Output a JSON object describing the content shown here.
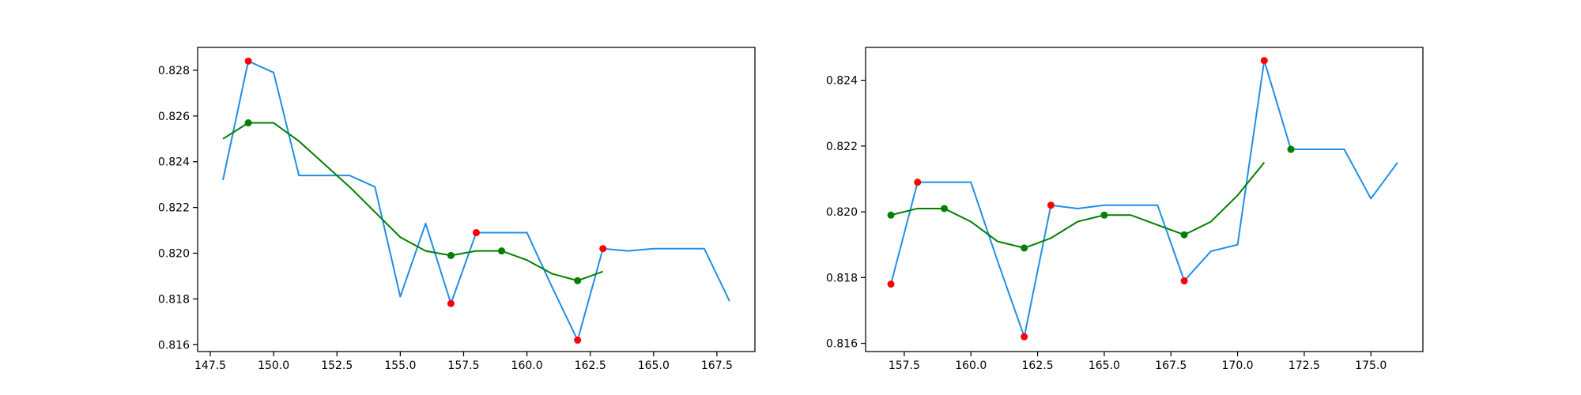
{
  "colors": {
    "raw_line": "#1f8fe6",
    "smooth_line": "#008000",
    "red_point": "#ff0000",
    "green_point": "#008000"
  },
  "chart_data": [
    {
      "type": "line",
      "title": "",
      "xlabel": "",
      "ylabel": "",
      "grid": false,
      "xlim": [
        147.0,
        169.0
      ],
      "ylim": [
        0.8157,
        0.829
      ],
      "xticks": [
        147.5,
        150.0,
        152.5,
        155.0,
        157.5,
        160.0,
        162.5,
        165.0,
        167.5
      ],
      "xtick_labels": [
        "147.5",
        "150.0",
        "152.5",
        "155.0",
        "157.5",
        "160.0",
        "162.5",
        "165.0",
        "167.5"
      ],
      "yticks": [
        0.816,
        0.818,
        0.82,
        0.822,
        0.824,
        0.826,
        0.828
      ],
      "ytick_labels": [
        "0.816",
        "0.818",
        "0.820",
        "0.822",
        "0.824",
        "0.826",
        "0.828"
      ],
      "series": [
        {
          "role": "raw",
          "x": [
            148,
            149,
            150,
            151,
            152,
            153,
            154,
            155,
            156,
            157,
            158,
            159,
            160,
            161,
            162,
            163,
            164,
            165,
            166,
            167,
            168
          ],
          "y": [
            0.8232,
            0.8284,
            0.8279,
            0.8234,
            0.8234,
            0.8234,
            0.8229,
            0.8181,
            0.8213,
            0.8178,
            0.8209,
            0.8209,
            0.8209,
            0.8185,
            0.8162,
            0.8202,
            0.8201,
            0.8202,
            0.8202,
            0.8202,
            0.8179
          ]
        },
        {
          "role": "smoothed",
          "x": [
            148,
            149,
            150,
            151,
            152,
            153,
            154,
            155,
            156,
            157,
            158,
            159,
            160,
            161,
            162,
            163
          ],
          "y": [
            0.825,
            0.8257,
            0.8257,
            0.8249,
            0.8239,
            0.8229,
            0.8218,
            0.8207,
            0.8201,
            0.8199,
            0.8201,
            0.8201,
            0.8197,
            0.8191,
            0.8188,
            0.8192
          ]
        }
      ],
      "red_points": {
        "x": [
          149,
          157,
          158,
          162,
          163
        ],
        "y": [
          0.8284,
          0.8178,
          0.8209,
          0.8162,
          0.8202
        ]
      },
      "green_points": {
        "x": [
          149,
          157,
          159,
          162
        ],
        "y": [
          0.8257,
          0.8199,
          0.8201,
          0.8188
        ]
      }
    },
    {
      "type": "line",
      "title": "",
      "xlabel": "",
      "ylabel": "",
      "grid": false,
      "xlim": [
        156.05,
        176.95
      ],
      "ylim": [
        0.81575,
        0.825
      ],
      "xticks": [
        157.5,
        160.0,
        162.5,
        165.0,
        167.5,
        170.0,
        172.5,
        175.0
      ],
      "xtick_labels": [
        "157.5",
        "160.0",
        "162.5",
        "165.0",
        "167.5",
        "170.0",
        "172.5",
        "175.0"
      ],
      "yticks": [
        0.816,
        0.818,
        0.82,
        0.822,
        0.824
      ],
      "ytick_labels": [
        "0.816",
        "0.818",
        "0.820",
        "0.822",
        "0.824"
      ],
      "series": [
        {
          "role": "raw",
          "x": [
            157,
            158,
            159,
            160,
            161,
            162,
            163,
            164,
            165,
            166,
            167,
            168,
            169,
            170,
            171,
            172,
            173,
            174,
            175,
            176
          ],
          "y": [
            0.8178,
            0.8209,
            0.8209,
            0.8209,
            0.8185,
            0.8162,
            0.8202,
            0.8201,
            0.8202,
            0.8202,
            0.8202,
            0.8179,
            0.8188,
            0.819,
            0.8246,
            0.8219,
            0.8219,
            0.8219,
            0.8204,
            0.8215
          ]
        },
        {
          "role": "smoothed",
          "x": [
            157,
            158,
            159,
            160,
            161,
            162,
            163,
            164,
            165,
            166,
            167,
            168,
            169,
            170,
            171
          ],
          "y": [
            0.8199,
            0.8201,
            0.8201,
            0.8197,
            0.8191,
            0.8189,
            0.8192,
            0.8197,
            0.8199,
            0.8199,
            0.8196,
            0.8193,
            0.8197,
            0.8205,
            0.8215
          ]
        }
      ],
      "red_points": {
        "x": [
          157,
          158,
          162,
          163,
          168,
          171,
          172
        ],
        "y": [
          0.8178,
          0.8209,
          0.8162,
          0.8202,
          0.8179,
          0.8246,
          0.8219
        ]
      },
      "green_points": {
        "x": [
          157,
          159,
          162,
          165,
          168,
          172
        ],
        "y": [
          0.8199,
          0.8201,
          0.8189,
          0.8199,
          0.8193,
          0.8219
        ]
      }
    }
  ]
}
